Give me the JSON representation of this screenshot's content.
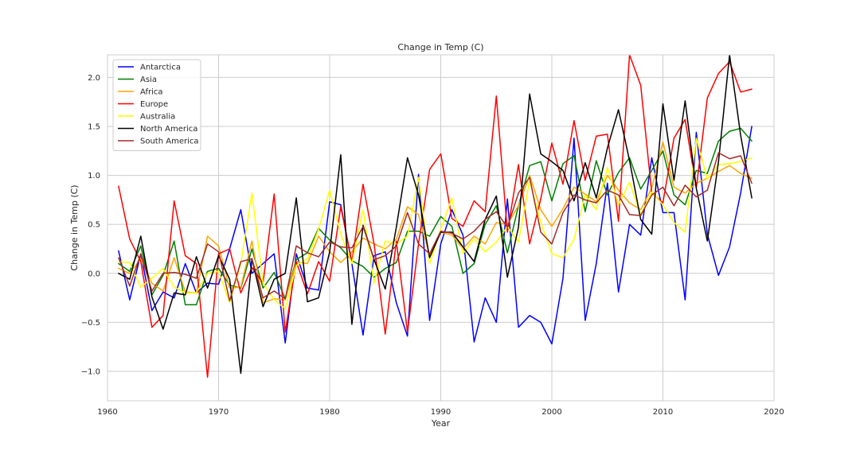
{
  "chart_data": {
    "type": "line",
    "title": "Change in Temp (C)",
    "xlabel": "Year",
    "ylabel": "Change in Temp (C)",
    "xlim": [
      1960,
      2020
    ],
    "ylim": [
      -1.3,
      2.23
    ],
    "xticks": [
      1960,
      1970,
      1980,
      1990,
      2000,
      2010,
      2020
    ],
    "yticks": [
      -1.0,
      -0.5,
      0.0,
      0.5,
      1.0,
      1.5,
      2.0
    ],
    "ytick_labels": [
      "−1.0",
      "−0.5",
      "0.0",
      "0.5",
      "1.0",
      "1.5",
      "2.0"
    ],
    "grid": true,
    "legend_position": "top-left",
    "x": [
      1961,
      1962,
      1963,
      1964,
      1965,
      1966,
      1967,
      1968,
      1969,
      1970,
      1971,
      1972,
      1973,
      1974,
      1975,
      1976,
      1977,
      1978,
      1979,
      1980,
      1981,
      1982,
      1983,
      1984,
      1985,
      1986,
      1987,
      1988,
      1989,
      1990,
      1991,
      1992,
      1993,
      1994,
      1995,
      1996,
      1997,
      1998,
      1999,
      2000,
      2001,
      2002,
      2003,
      2004,
      2005,
      2006,
      2007,
      2008,
      2009,
      2010,
      2011,
      2012,
      2013,
      2014,
      2015,
      2016,
      2017,
      2018
    ],
    "series": [
      {
        "name": "Antarctica",
        "color": "#0000ff",
        "values": [
          0.23,
          -0.27,
          0.2,
          -0.38,
          -0.19,
          -0.25,
          0.1,
          -0.2,
          -0.1,
          -0.11,
          0.25,
          0.65,
          0.0,
          0.1,
          0.2,
          -0.71,
          0.2,
          -0.15,
          -0.17,
          0.73,
          0.7,
          0.1,
          -0.63,
          0.18,
          0.22,
          -0.3,
          -0.64,
          1.01,
          -0.48,
          0.3,
          0.65,
          0.39,
          -0.7,
          -0.25,
          -0.5,
          0.76,
          -0.55,
          -0.43,
          -0.5,
          -0.72,
          -0.05,
          1.38,
          -0.48,
          0.1,
          0.92,
          -0.19,
          0.5,
          0.39,
          1.18,
          0.62,
          0.62,
          -0.27,
          1.44,
          0.4,
          -0.02,
          0.27,
          0.82,
          1.5
        ]
      },
      {
        "name": "Asia",
        "color": "#008000",
        "values": [
          0.1,
          0.02,
          0.28,
          -0.22,
          -0.02,
          0.33,
          -0.32,
          -0.32,
          0.02,
          0.05,
          -0.12,
          -0.15,
          0.25,
          -0.15,
          0.01,
          -0.26,
          0.14,
          0.21,
          0.46,
          0.34,
          0.26,
          0.13,
          0.07,
          -0.04,
          0.05,
          0.11,
          0.43,
          0.43,
          0.38,
          0.58,
          0.48,
          0.0,
          0.1,
          0.5,
          0.69,
          0.21,
          0.69,
          1.1,
          1.14,
          0.74,
          1.12,
          1.2,
          0.63,
          1.15,
          0.8,
          1.03,
          1.18,
          0.86,
          1.05,
          1.25,
          0.8,
          0.7,
          1.05,
          1.02,
          1.35,
          1.45,
          1.48,
          1.35
        ]
      },
      {
        "name": "Africa",
        "color": "#ffa500",
        "values": [
          0.05,
          0.0,
          0.15,
          -0.1,
          -0.18,
          0.16,
          -0.19,
          -0.2,
          0.38,
          0.28,
          -0.15,
          -0.14,
          0.33,
          -0.3,
          -0.26,
          -0.27,
          0.12,
          0.1,
          0.38,
          0.22,
          0.11,
          0.22,
          0.36,
          0.3,
          0.25,
          0.35,
          0.68,
          0.6,
          0.18,
          0.42,
          0.39,
          0.25,
          0.38,
          0.3,
          0.52,
          0.5,
          0.69,
          1.0,
          0.65,
          0.48,
          0.66,
          0.88,
          0.81,
          0.73,
          1.0,
          0.85,
          0.72,
          0.65,
          0.87,
          1.34,
          0.88,
          0.82,
          0.92,
          0.97,
          1.04,
          1.1,
          1.02,
          0.97
        ]
      },
      {
        "name": "Europe",
        "color": "#ff0000",
        "values": [
          0.89,
          0.35,
          0.12,
          -0.55,
          -0.43,
          0.74,
          0.18,
          0.1,
          -1.06,
          0.2,
          0.25,
          -0.2,
          0.06,
          -0.1,
          0.81,
          -0.6,
          0.12,
          -0.21,
          0.12,
          -0.08,
          0.68,
          0.12,
          0.91,
          0.3,
          -0.62,
          0.33,
          -0.6,
          0.3,
          1.06,
          1.22,
          0.56,
          0.48,
          0.74,
          0.63,
          1.81,
          0.42,
          1.11,
          0.3,
          0.76,
          1.33,
          0.91,
          1.56,
          0.95,
          1.4,
          1.42,
          0.53,
          2.23,
          1.92,
          0.82,
          0.72,
          1.38,
          1.57,
          0.87,
          1.79,
          2.04,
          2.16,
          1.85,
          1.88
        ]
      },
      {
        "name": "Australia",
        "color": "#ffff00",
        "values": [
          0.12,
          0.11,
          -0.14,
          -0.05,
          0.05,
          -0.14,
          -0.2,
          -0.2,
          0.0,
          0.02,
          -0.3,
          0.1,
          0.82,
          -0.1,
          -0.27,
          -0.36,
          0.08,
          0.15,
          0.45,
          0.85,
          0.4,
          0.1,
          0.65,
          -0.1,
          0.33,
          0.3,
          0.38,
          0.98,
          0.1,
          0.45,
          0.77,
          0.2,
          0.35,
          0.22,
          0.32,
          0.48,
          0.32,
          0.95,
          0.52,
          0.2,
          0.16,
          0.35,
          0.8,
          0.65,
          1.08,
          0.7,
          0.93,
          0.6,
          0.83,
          0.7,
          0.52,
          0.42,
          1.38,
          0.96,
          1.11,
          1.12,
          1.14,
          1.18
        ]
      },
      {
        "name": "North America",
        "color": "#000000",
        "values": [
          0.0,
          -0.06,
          0.38,
          -0.24,
          -0.57,
          -0.2,
          -0.22,
          0.17,
          -0.15,
          0.18,
          -0.06,
          -1.02,
          0.15,
          -0.34,
          -0.06,
          0.0,
          0.77,
          -0.29,
          -0.25,
          0.22,
          1.21,
          -0.52,
          0.49,
          0.14,
          -0.16,
          0.47,
          1.18,
          0.8,
          0.16,
          0.42,
          0.42,
          0.27,
          0.12,
          0.55,
          0.79,
          -0.04,
          0.47,
          1.83,
          1.22,
          1.14,
          1.05,
          0.74,
          1.13,
          0.77,
          1.28,
          1.67,
          1.15,
          0.55,
          0.4,
          1.73,
          0.95,
          1.76,
          0.87,
          0.33,
          1.14,
          2.23,
          1.41,
          0.77
        ]
      },
      {
        "name": "South America",
        "color": "#a52a2a",
        "values": [
          0.16,
          -0.13,
          0.2,
          -0.18,
          0.0,
          0.01,
          -0.01,
          -0.05,
          0.3,
          0.22,
          -0.28,
          0.12,
          0.15,
          -0.25,
          -0.18,
          -0.26,
          0.28,
          0.21,
          0.17,
          0.32,
          0.27,
          0.26,
          0.48,
          0.14,
          0.18,
          0.28,
          0.62,
          0.3,
          0.2,
          0.43,
          0.41,
          0.35,
          0.43,
          0.55,
          0.63,
          0.47,
          0.82,
          0.98,
          0.42,
          0.3,
          0.62,
          0.8,
          0.75,
          0.72,
          0.85,
          0.8,
          0.6,
          0.59,
          0.8,
          0.88,
          0.69,
          0.9,
          0.78,
          0.85,
          1.23,
          1.17,
          1.2,
          0.92
        ]
      }
    ]
  }
}
